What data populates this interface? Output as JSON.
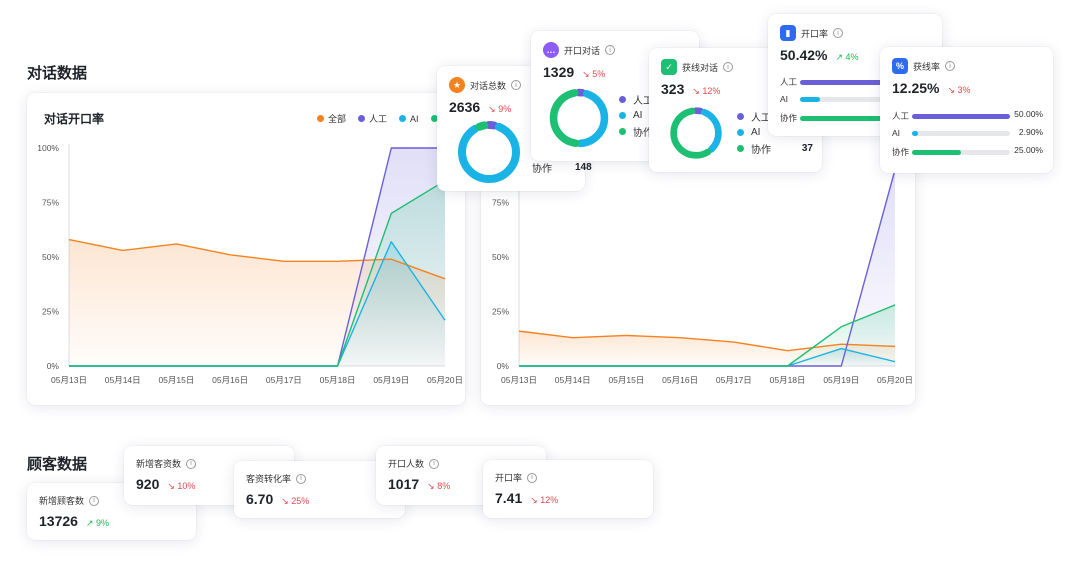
{
  "sections": {
    "conversation": "对话数据",
    "customer": "顾客数据"
  },
  "chart_left": {
    "title": "对话开口率"
  },
  "legend": [
    {
      "label": "全部",
      "color": "#f5821f"
    },
    {
      "label": "人工",
      "color": "#6a5fd8"
    },
    {
      "label": "AI",
      "color": "#1ab3e6"
    },
    {
      "label": "",
      "color": "#1dbf73"
    }
  ],
  "chart_data": [
    {
      "type": "area",
      "title": "对话开口率",
      "categories": [
        "05月13日",
        "05月14日",
        "05月15日",
        "05月16日",
        "05月17日",
        "05月18日",
        "05月19日",
        "05月20日"
      ],
      "y_ticks": [
        "100%",
        "75%",
        "50%",
        "25%",
        "0%"
      ],
      "ylim": [
        0,
        100
      ],
      "series": [
        {
          "name": "全部",
          "color": "#f5821f",
          "values": [
            58,
            53,
            56,
            51,
            48,
            48,
            49,
            40
          ]
        },
        {
          "name": "人工",
          "color": "#6a5fd8",
          "values": [
            0,
            0,
            0,
            0,
            0,
            0,
            100,
            100
          ]
        },
        {
          "name": "AI",
          "color": "#1ab3e6",
          "values": [
            0,
            0,
            0,
            0,
            0,
            0,
            57,
            21
          ]
        },
        {
          "name": "",
          "color": "#1dbf73",
          "values": [
            0,
            0,
            0,
            0,
            0,
            0,
            70,
            85
          ]
        }
      ]
    },
    {
      "type": "area",
      "title": "",
      "categories": [
        "05月13日",
        "05月14日",
        "05月15日",
        "05月16日",
        "05月17日",
        "05月18日",
        "05月19日",
        "05月20日"
      ],
      "y_ticks": [
        "75%",
        "50%",
        "25%",
        "0%"
      ],
      "ylim": [
        0,
        100
      ],
      "series": [
        {
          "name": "全部",
          "color": "#f5821f",
          "values": [
            16,
            13,
            14,
            13,
            11,
            7,
            10,
            9
          ]
        },
        {
          "name": "人工",
          "color": "#6a5fd8",
          "values": [
            0,
            0,
            0,
            0,
            0,
            0,
            0,
            90
          ]
        },
        {
          "name": "AI",
          "color": "#1ab3e6",
          "values": [
            0,
            0,
            0,
            0,
            0,
            0,
            8,
            2
          ]
        },
        {
          "name": "",
          "color": "#1dbf73",
          "values": [
            0,
            0,
            0,
            0,
            0,
            0,
            18,
            28
          ]
        }
      ]
    }
  ],
  "card_total": {
    "label": "对话总数",
    "value": "2636",
    "change": "9%",
    "icon_color": "#f5821f",
    "donut": [
      {
        "color": "#6a5fd8",
        "value": 0.06
      },
      {
        "color": "#1ab3e6",
        "value": 0.88
      },
      {
        "color": "#1dbf73",
        "value": 0.06
      }
    ],
    "legend": [
      {
        "label": "协作",
        "value": "148",
        "color": "#1dbf73"
      }
    ]
  },
  "card_open": {
    "label": "开口对话",
    "value": "1329",
    "change": "5%",
    "icon_color": "#8b5cf6",
    "donut": [
      {
        "color": "#6a5fd8",
        "value": 0.05
      },
      {
        "color": "#1ab3e6",
        "value": 0.47
      },
      {
        "color": "#1dbf73",
        "value": 0.48
      }
    ],
    "legend": [
      {
        "label": "人工",
        "color": "#6a5fd8"
      },
      {
        "label": "AI",
        "color": "#1ab3e6"
      },
      {
        "label": "协作",
        "color": "#1dbf73"
      }
    ]
  },
  "card_lead": {
    "label": "获线对话",
    "value": "323",
    "change": "12%",
    "icon_color": "#1dbf73",
    "donut": [
      {
        "color": "#6a5fd8",
        "value": 0.06
      },
      {
        "color": "#1ab3e6",
        "value": 0.35
      },
      {
        "color": "#1dbf73",
        "value": 0.59
      }
    ],
    "legend": [
      {
        "label": "人工",
        "color": "#6a5fd8"
      },
      {
        "label": "AI",
        "color": "#1ab3e6"
      },
      {
        "label": "协作",
        "value": "37",
        "color": "#1dbf73"
      }
    ]
  },
  "card_open_rate": {
    "label": "开口率",
    "value": "50.42%",
    "change": "4%",
    "icon_color": "#2f6bf0",
    "bars": [
      {
        "label": "人工",
        "fraction": 0.95,
        "color": "#6a5fd8"
      },
      {
        "label": "AI",
        "fraction": 0.2,
        "color": "#1ab3e6"
      },
      {
        "label": "协作",
        "fraction": 0.82,
        "color": "#1dbf73"
      }
    ]
  },
  "card_lead_rate": {
    "label": "获线率",
    "value": "12.25%",
    "change": "3%",
    "icon_color": "#2f6bf0",
    "bars": [
      {
        "label": "人工",
        "pct": "50.00%",
        "fraction": 1.0,
        "color": "#6a5fd8"
      },
      {
        "label": "AI",
        "pct": "2.90%",
        "fraction": 0.06,
        "color": "#1ab3e6"
      },
      {
        "label": "协作",
        "pct": "25.00%",
        "fraction": 0.5,
        "color": "#1dbf73"
      }
    ]
  },
  "customer_cards": [
    {
      "label": "新增顾客数",
      "value": "13726",
      "change": "9%",
      "direction": "up"
    },
    {
      "label": "新增客资数",
      "value": "920",
      "change": "10%",
      "direction": "down"
    },
    {
      "label": "客资转化率",
      "value": "6.70",
      "change": "25%",
      "direction": "down"
    },
    {
      "label": "开口人数",
      "value": "1017",
      "change": "8%",
      "direction": "down"
    },
    {
      "label": "开口率",
      "value": "7.41",
      "change": "12%",
      "direction": "down"
    }
  ]
}
